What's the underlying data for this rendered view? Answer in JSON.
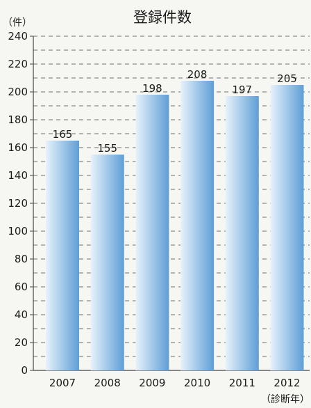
{
  "chart_data": {
    "type": "bar",
    "title": "登録件数",
    "y_unit_label": "（件）",
    "x_unit_label": "（診断年）",
    "categories": [
      "2007",
      "2008",
      "2009",
      "2010",
      "2011",
      "2012"
    ],
    "values": [
      165,
      155,
      198,
      208,
      197,
      205
    ],
    "ylim": [
      0,
      240
    ],
    "y_ticks": [
      0,
      20,
      40,
      60,
      80,
      100,
      120,
      140,
      160,
      180,
      200,
      220,
      240
    ],
    "grid": true,
    "legend": "none",
    "colors": {
      "bar_light": "#e8f2fb",
      "bar_mid": "#a9cdeb",
      "bar_dark": "#5f9ed6",
      "grid": "#6f6f6f",
      "axis": "#444444"
    }
  }
}
